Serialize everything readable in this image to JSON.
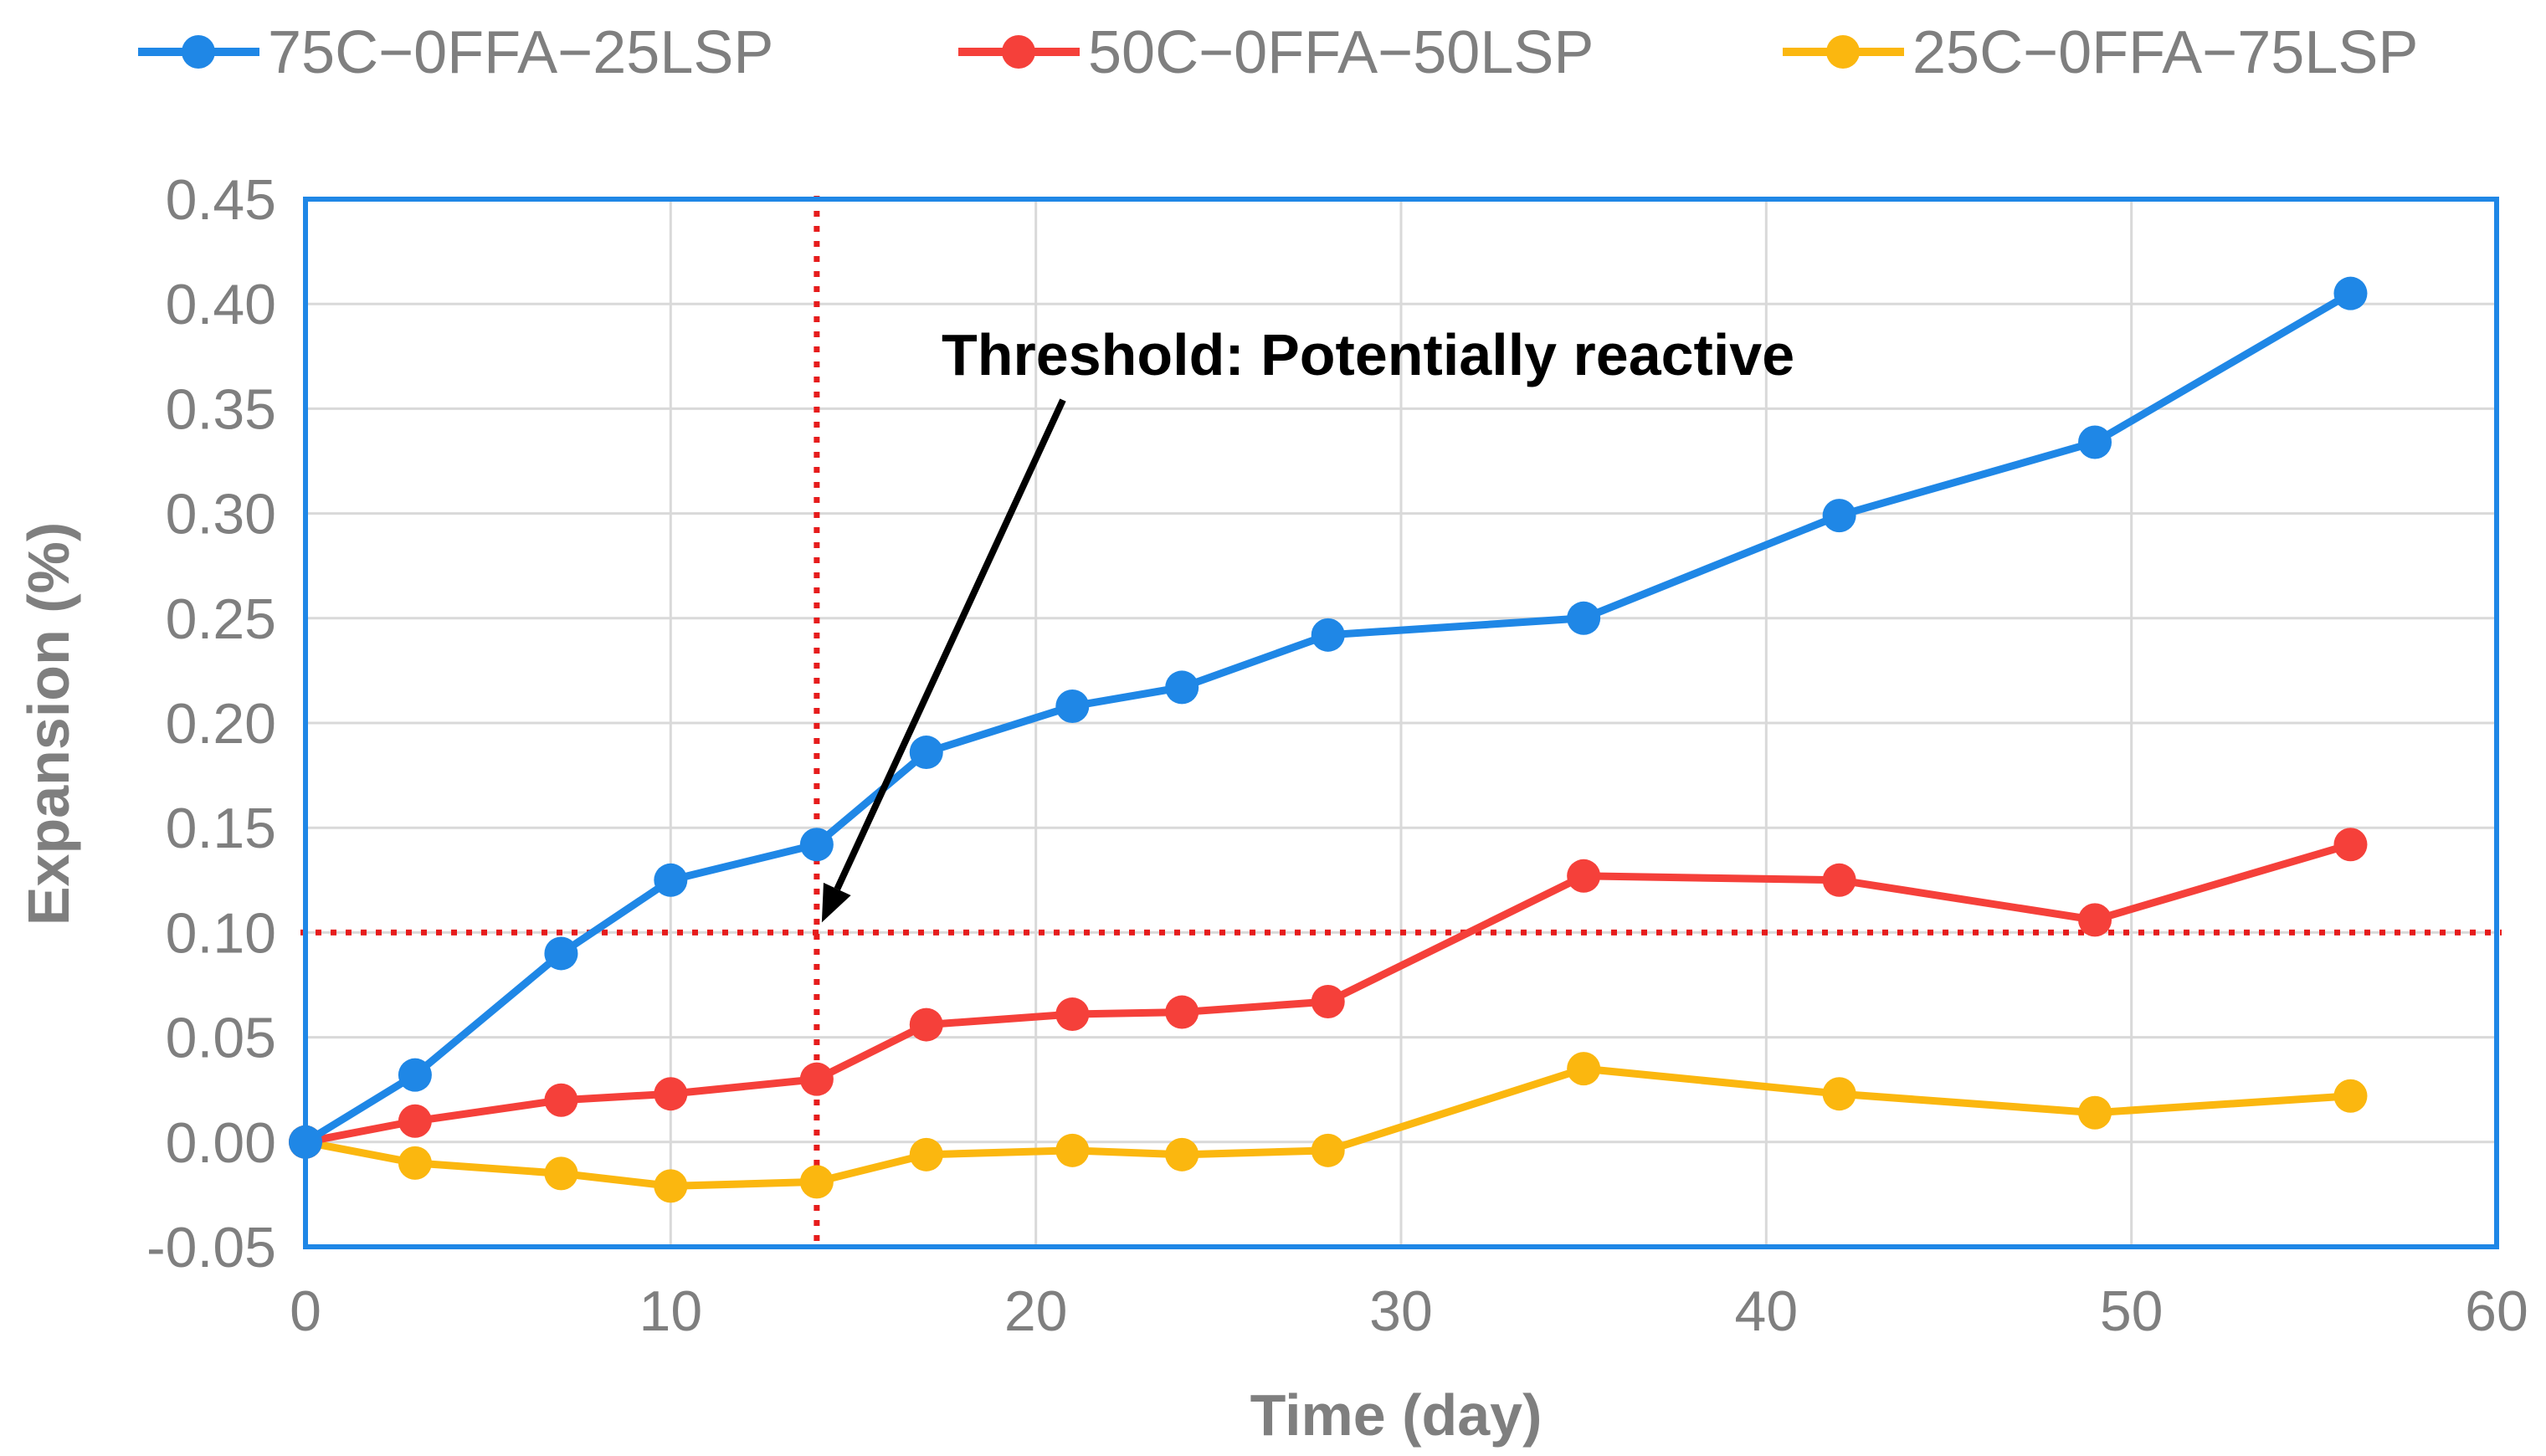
{
  "chart_data": {
    "type": "line",
    "title": "",
    "xlabel": "Time (day)",
    "ylabel": "Expansion (%)",
    "xlim": [
      0,
      60
    ],
    "ylim": [
      -0.05,
      0.45
    ],
    "x_ticks": [
      "0",
      "10",
      "20",
      "30",
      "40",
      "50",
      "60"
    ],
    "y_ticks": [
      "-0.05",
      "0.00",
      "0.05",
      "0.10",
      "0.15",
      "0.20",
      "0.25",
      "0.30",
      "0.35",
      "0.40",
      "0.45"
    ],
    "grid": true,
    "legend_position": "top",
    "series": [
      {
        "name": "75C−0FFA−25LSP",
        "color": "#1f87e6",
        "x": [
          0,
          3,
          7,
          10,
          14,
          17,
          21,
          24,
          28,
          35,
          42,
          49,
          56
        ],
        "values": [
          0.0,
          0.032,
          0.09,
          0.125,
          0.142,
          0.186,
          0.208,
          0.217,
          0.242,
          0.25,
          0.299,
          0.334,
          0.405
        ]
      },
      {
        "name": "50C−0FFA−50LSP",
        "color": "#f5403a",
        "x": [
          0,
          3,
          7,
          10,
          14,
          17,
          21,
          24,
          28,
          35,
          42,
          49,
          56
        ],
        "values": [
          0.0,
          0.01,
          0.02,
          0.023,
          0.03,
          0.056,
          0.061,
          0.062,
          0.067,
          0.127,
          0.125,
          0.106,
          0.142
        ]
      },
      {
        "name": "25C−0FFA−75LSP",
        "color": "#fbb70f",
        "x": [
          0,
          3,
          7,
          10,
          14,
          17,
          21,
          24,
          28,
          35,
          42,
          49,
          56
        ],
        "values": [
          0.0,
          -0.01,
          -0.015,
          -0.021,
          -0.019,
          -0.006,
          -0.004,
          -0.006,
          -0.004,
          0.035,
          0.023,
          0.014,
          0.022
        ]
      }
    ],
    "reference_lines": [
      {
        "orientation": "horizontal",
        "value": 0.1,
        "color": "#e61c1c"
      },
      {
        "orientation": "vertical",
        "value": 14,
        "color": "#e61c1c"
      }
    ],
    "annotation": {
      "text": "Threshold: Potentially reactive",
      "points_to": {
        "x": 14,
        "y": 0.1
      }
    }
  },
  "colors": {
    "plot_border": "#1f87e6",
    "grid": "#d9d9d9",
    "threshold": "#e61c1c",
    "arrow": "#000000"
  }
}
